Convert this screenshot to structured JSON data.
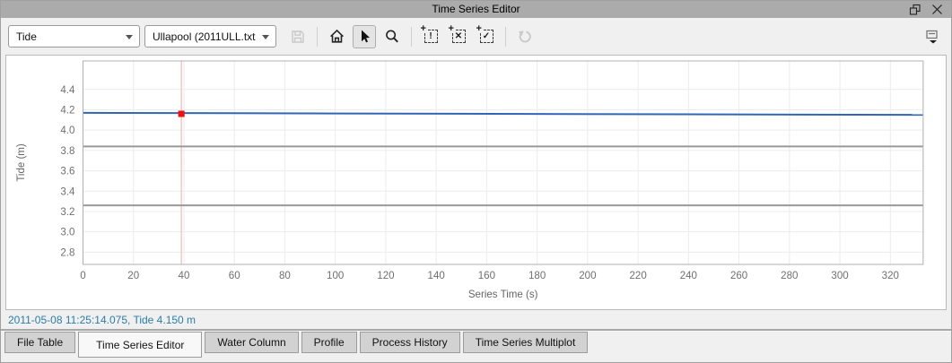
{
  "window": {
    "title": "Time Series Editor"
  },
  "titlebar": {
    "icons": [
      "float-icon",
      "close-icon"
    ]
  },
  "toolbar": {
    "series_combo": {
      "value": "Tide"
    },
    "file_combo": {
      "value": "Ullapool (2011ULL.txt"
    },
    "icons": [
      "save-icon",
      "home-icon",
      "cursor-icon",
      "zoom-icon",
      "select-exclaim-icon",
      "select-remove-icon",
      "select-check-icon",
      "undo-icon",
      "plot-options-icon"
    ],
    "select_glyphs": {
      "plus": "+",
      "exclaim": "!",
      "remove": "✕",
      "check": "✓"
    }
  },
  "chart_data": {
    "type": "line",
    "title": "",
    "xlabel": "Series Time (s)",
    "ylabel": "Tide (m)",
    "xlim": [
      0,
      333
    ],
    "ylim": [
      2.68,
      4.68
    ],
    "xticks": [
      0,
      20,
      40,
      60,
      80,
      100,
      120,
      140,
      160,
      180,
      200,
      220,
      240,
      260,
      280,
      300,
      320
    ],
    "yticks": [
      2.8,
      3.0,
      3.2,
      3.4,
      3.6,
      3.8,
      4.0,
      4.2,
      4.4
    ],
    "grid": true,
    "legend": "none",
    "series": [
      {
        "name": "tide-line",
        "color": "#3165b6",
        "width": 2,
        "x": [
          0,
          333
        ],
        "y": [
          4.17,
          4.15
        ]
      },
      {
        "name": "upper-gray-line",
        "color": "#999999",
        "width": 2,
        "x": [
          0,
          333
        ],
        "y": [
          3.84,
          3.84
        ]
      },
      {
        "name": "lower-gray-line",
        "color": "#999999",
        "width": 2,
        "x": [
          0,
          333
        ],
        "y": [
          3.26,
          3.26
        ]
      }
    ],
    "selected_point": {
      "x": 39,
      "y": 4.16,
      "marker": "red-square",
      "color": "#ee1111",
      "cursor_line_color": "#f3bdbd"
    }
  },
  "status": {
    "text": "2011-05-08 11:25:14.075, Tide 4.150 m",
    "color": "#2b7da5"
  },
  "tabs": {
    "items": [
      {
        "label": "File Table",
        "active": false
      },
      {
        "label": "Time Series Editor",
        "active": true
      },
      {
        "label": "Water Column",
        "active": false
      },
      {
        "label": "Profile",
        "active": false
      },
      {
        "label": "Process History",
        "active": false
      },
      {
        "label": "Time Series Multiplot",
        "active": false
      }
    ]
  }
}
